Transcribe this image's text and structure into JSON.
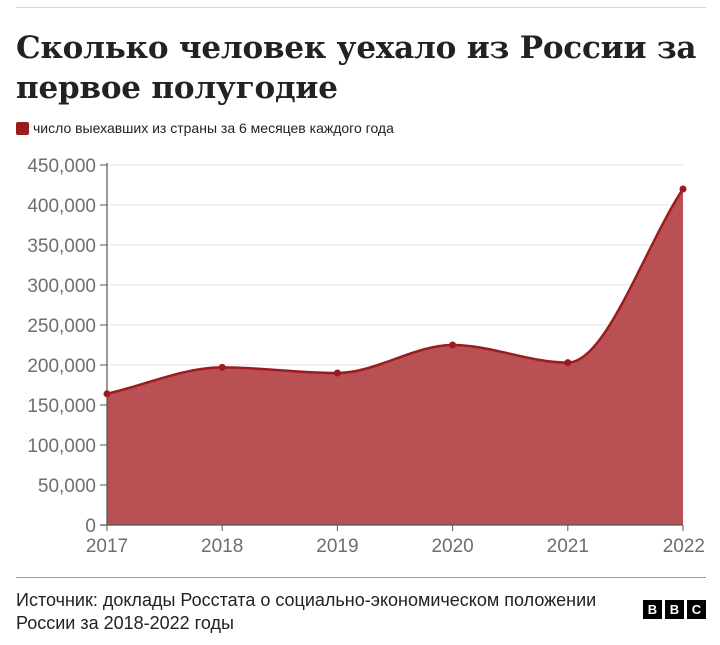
{
  "title": "Сколько человек уехало из России за первое полугодие",
  "legend": {
    "label": "число выехавших из страны за 6 месяцев каждого года"
  },
  "source": "Источник: доклады Росстата о социально-экономическом положении России за 2018-2022 годы",
  "logo": {
    "text": "BBC",
    "letters": [
      "B",
      "B",
      "C"
    ]
  },
  "colors": {
    "series": "#9b1c1f",
    "fill": "#b64a4d",
    "axis": "#555555",
    "grid": "#e6e6e6"
  },
  "chart_data": {
    "type": "area",
    "x": [
      "2017",
      "2018",
      "2019",
      "2020",
      "2021",
      "2022"
    ],
    "series": [
      {
        "name": "число выехавших из страны за 6 месяцев каждого года",
        "values": [
          164000,
          197000,
          190000,
          225000,
          203000,
          420000
        ]
      }
    ],
    "ylim": [
      0,
      450000
    ],
    "yticks": [
      0,
      50000,
      100000,
      150000,
      200000,
      250000,
      300000,
      350000,
      400000,
      450000
    ],
    "ytick_labels": [
      "0",
      "50,000",
      "100,000",
      "150,000",
      "200,000",
      "250,000",
      "300,000",
      "350,000",
      "400,000",
      "450,000"
    ],
    "xlabel": "",
    "ylabel": "",
    "grid": true,
    "smooth": true,
    "legend_position": "top-left"
  }
}
